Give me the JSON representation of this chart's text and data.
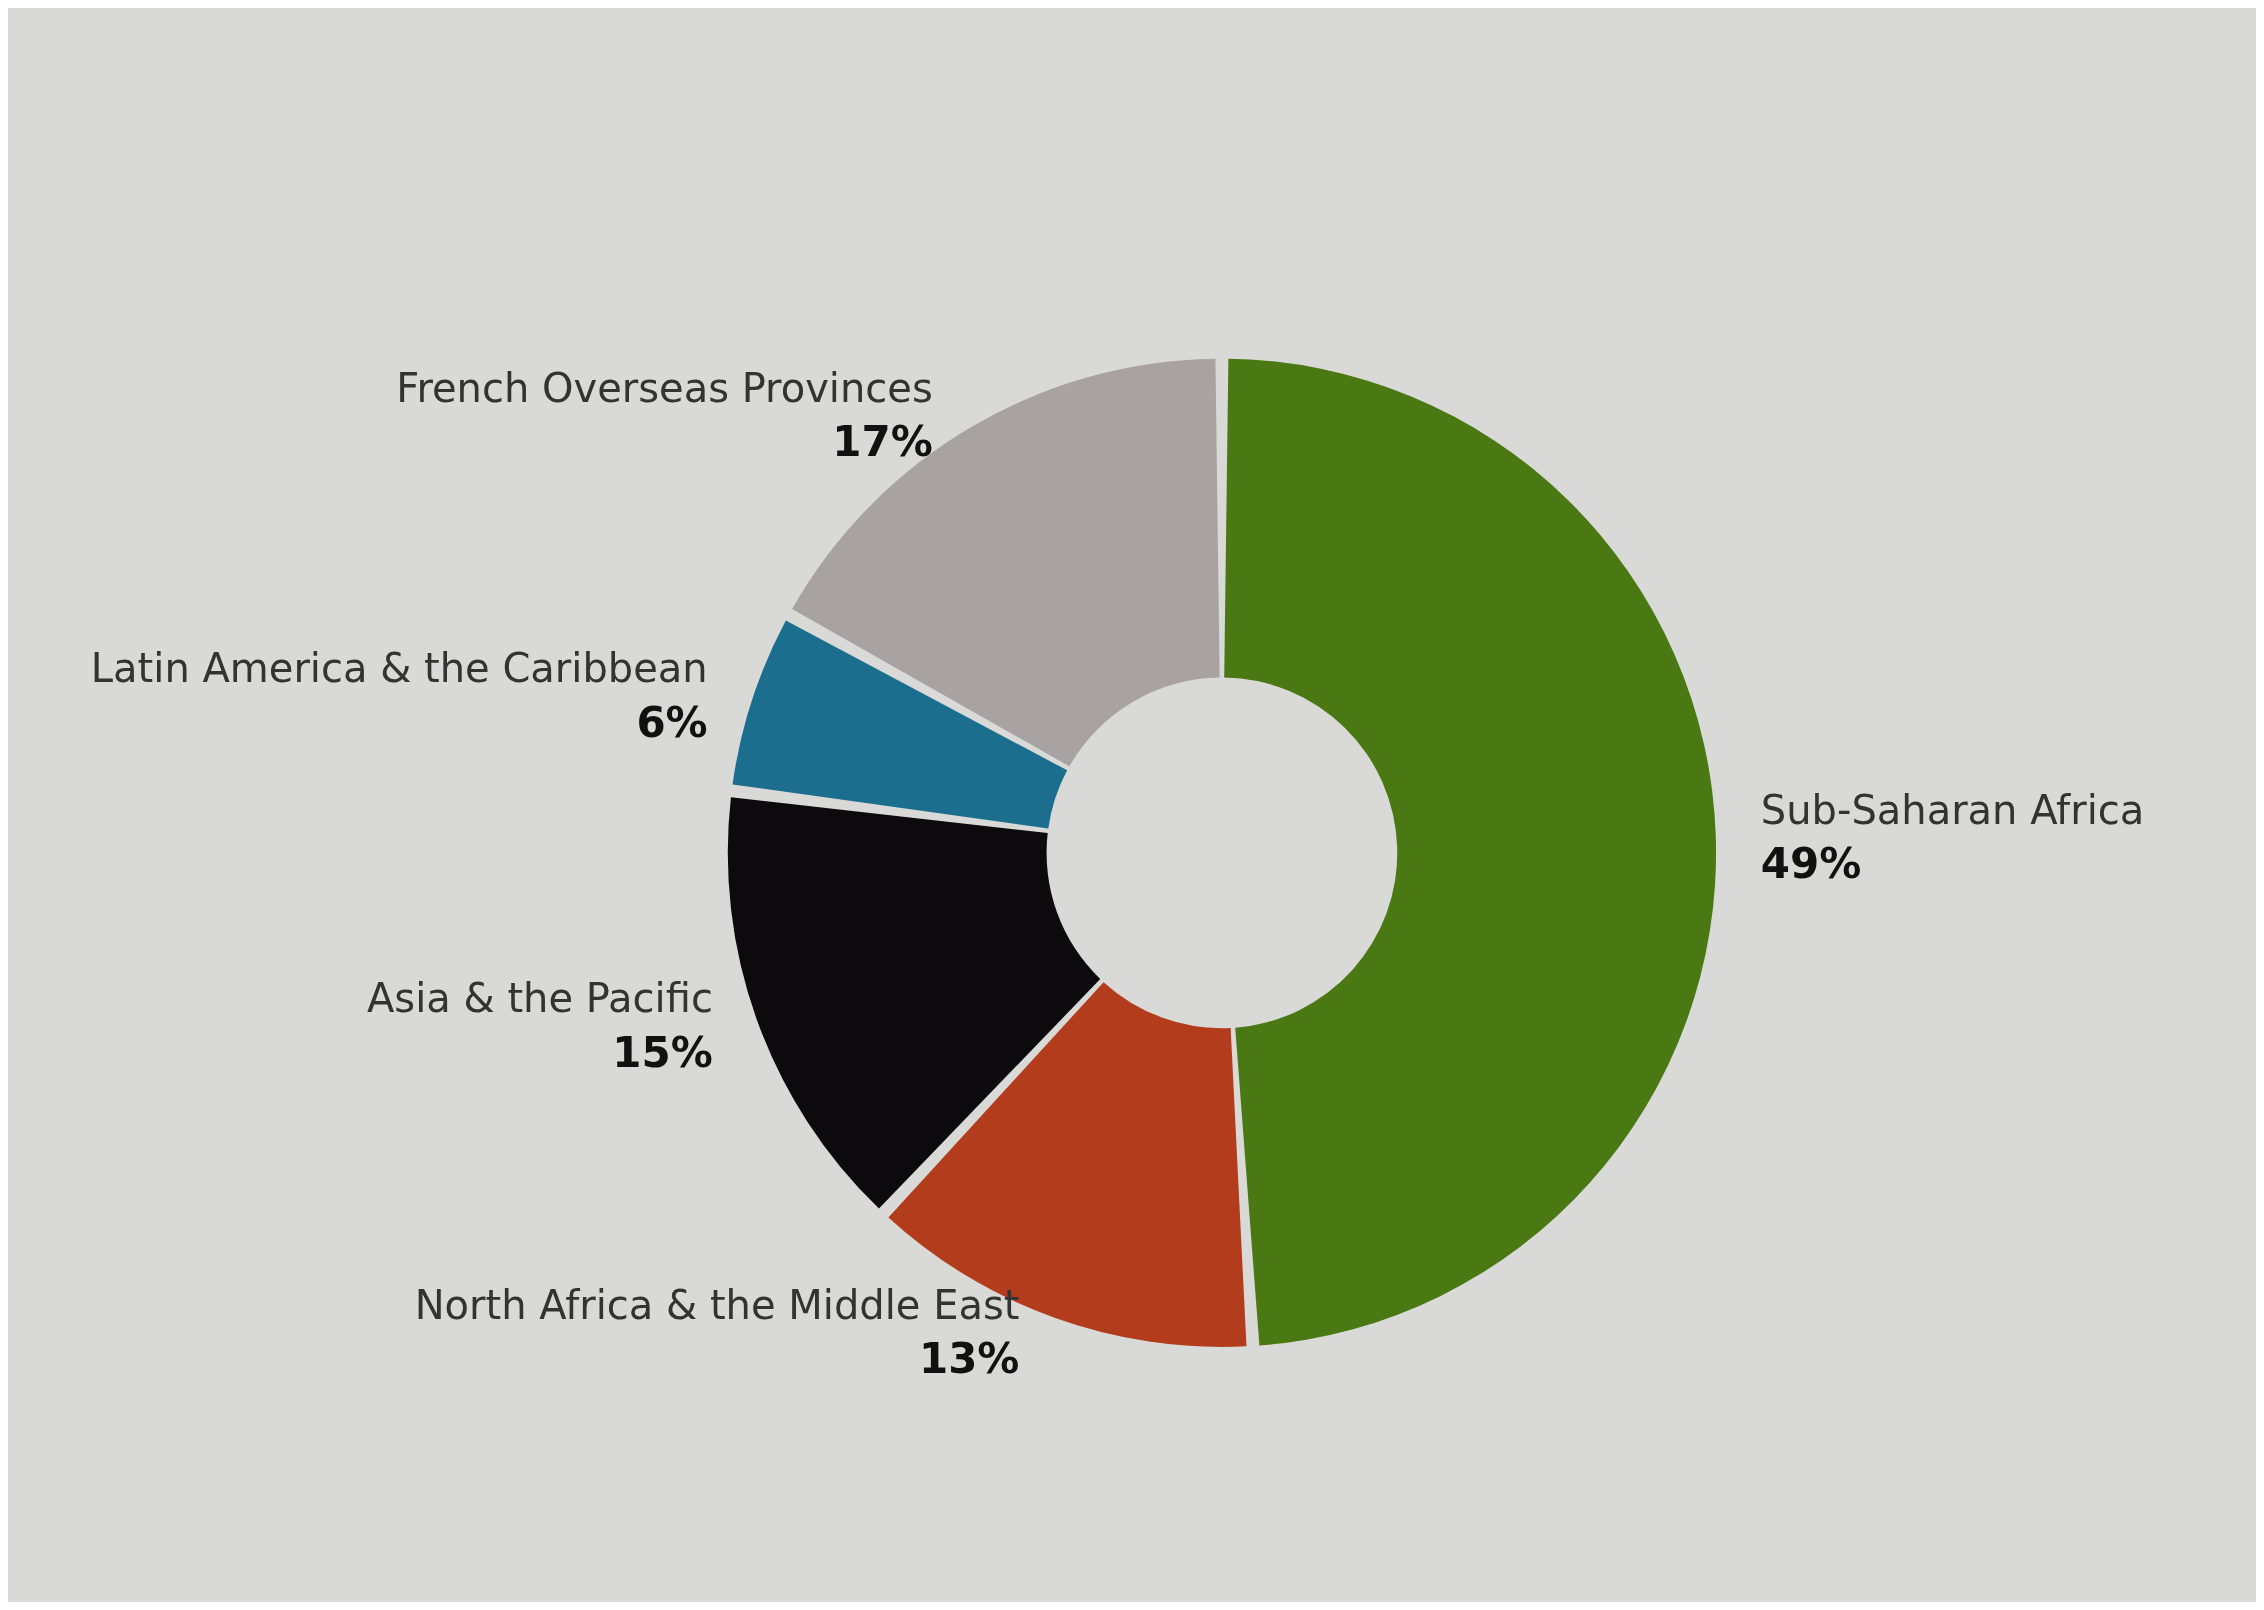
{
  "chart_data": {
    "type": "donut",
    "categories": [
      "Sub-Saharan Africa",
      "North Africa & the Middle East",
      "Asia & the Pacific",
      "Latin America & the Caribbean",
      "French Overseas Provinces"
    ],
    "values": [
      49,
      13,
      15,
      6,
      17
    ],
    "value_labels": [
      "49%",
      "13%",
      "15%",
      "6%",
      "17%"
    ],
    "colors": [
      "#4a7812",
      "#b23c1c",
      "#0c0a0c",
      "#1c6e8e",
      "#a9a2a2"
    ],
    "legend": false
  }
}
